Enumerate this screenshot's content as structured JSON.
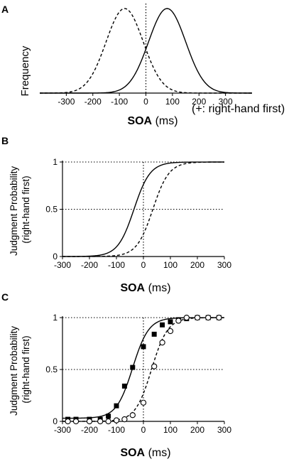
{
  "chart_data": [
    {
      "panel": "A",
      "type": "line",
      "ylabel": "Frequency",
      "xlabel_bold": "SOA",
      "xlabel_unit": "(ms)",
      "xlabel_note": "(+: right-hand first)",
      "xlim": [
        -400,
        400
      ],
      "xticks": [
        -300,
        -200,
        -100,
        0,
        100,
        200,
        300
      ],
      "zero_line": "dotted vertical at x = 0",
      "series": [
        {
          "style": "dashed",
          "distribution": "normal",
          "mean": -80,
          "sd": 70
        },
        {
          "style": "solid",
          "distribution": "normal",
          "mean": 80,
          "sd": 70
        }
      ]
    },
    {
      "panel": "B",
      "type": "line",
      "ylabel_line1": "Judgment Probability",
      "ylabel_line2": "(right-hand first)",
      "xlabel_bold": "SOA",
      "xlabel_unit": "(ms)",
      "xlim": [
        -300,
        300
      ],
      "ylim": [
        0,
        1
      ],
      "xticks": [
        -300,
        -200,
        -100,
        0,
        100,
        200,
        300
      ],
      "yticks": [
        0,
        0.5,
        1
      ],
      "ytick_labels": [
        "0",
        "0.5",
        "1"
      ],
      "grid": "dotted lines at y = 0.5, y = 1 and x = 0",
      "series": [
        {
          "style": "solid",
          "function": "logistic",
          "x50": -35,
          "slope_ms": 30
        },
        {
          "style": "dashed",
          "function": "logistic",
          "x50": 35,
          "slope_ms": 30
        }
      ]
    },
    {
      "panel": "C",
      "type": "scatter",
      "ylabel_line1": "Judgment Probability",
      "ylabel_line2": "(right-hand first)",
      "xlabel_bold": "SOA",
      "xlabel_unit": "(ms)",
      "xlim": [
        -300,
        300
      ],
      "ylim": [
        0,
        1
      ],
      "xticks": [
        -300,
        -200,
        -100,
        0,
        100,
        200,
        300
      ],
      "yticks": [
        0,
        0.5,
        1
      ],
      "ytick_labels": [
        "0",
        "0.5",
        "1"
      ],
      "grid": "dotted lines at y = 0.5, y = 1 and x = 0",
      "series": [
        {
          "marker": "filled-square",
          "fit": {
            "style": "solid",
            "function": "logistic",
            "x50": -40,
            "slope_ms": 30,
            "floor": 0.03
          },
          "x": [
            -280,
            -250,
            -200,
            -160,
            -130,
            -100,
            -70,
            -40,
            0,
            40,
            70,
            100,
            130,
            160,
            200,
            240,
            280
          ],
          "y": [
            0.02,
            0.02,
            0.02,
            0.02,
            0.05,
            0.15,
            0.34,
            0.52,
            0.72,
            0.84,
            0.93,
            0.96,
            0.98,
            0.99,
            1.0,
            1.0,
            1.0
          ]
        },
        {
          "marker": "open-circle",
          "fit": {
            "style": "dashed",
            "function": "logistic",
            "x50": 30,
            "slope_ms": 30,
            "floor": 0
          },
          "x": [
            -280,
            -250,
            -200,
            -160,
            -130,
            -100,
            -70,
            -40,
            0,
            40,
            70,
            100,
            130,
            160,
            200,
            240,
            280
          ],
          "y": [
            0.0,
            0.0,
            0.0,
            0.0,
            0.0,
            0.01,
            0.02,
            0.06,
            0.18,
            0.53,
            0.76,
            0.87,
            0.97,
            1.0,
            1.0,
            1.0,
            1.0
          ]
        }
      ]
    }
  ]
}
